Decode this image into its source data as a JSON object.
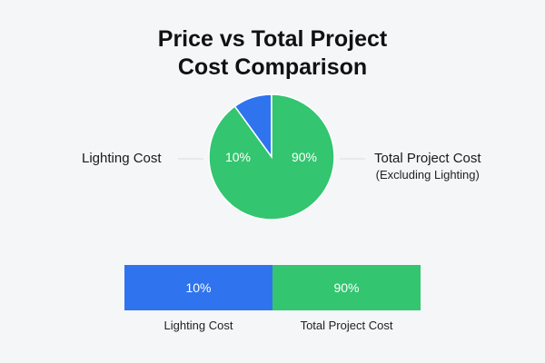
{
  "chart_data": [
    {
      "type": "pie",
      "title": "Price vs Total Project Cost Comparison",
      "title_lines": [
        "Price vs Total Project",
        "Cost Comparison"
      ],
      "slices": [
        {
          "label": "Lighting Cost",
          "value": 10,
          "value_label": "10%",
          "color": "#2f74ee"
        },
        {
          "label": "Total Project Cost",
          "sublabel": "(Excluding Lighting)",
          "value": 90,
          "value_label": "90%",
          "color": "#33c56f"
        }
      ],
      "legend": "none"
    },
    {
      "type": "bar",
      "orientation": "horizontal-stacked",
      "categories": [
        "Lighting Cost",
        "Total Project Cost"
      ],
      "values": [
        10,
        90
      ],
      "value_labels": [
        "10%",
        "90%"
      ],
      "colors": [
        "#2f74ee",
        "#33c56f"
      ],
      "legend": "none"
    }
  ]
}
